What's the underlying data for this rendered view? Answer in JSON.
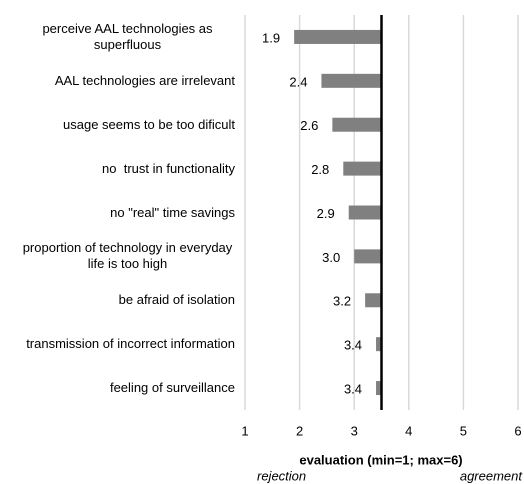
{
  "chart_data": {
    "type": "bar",
    "orientation": "horizontal",
    "categories": [
      "perceive AAL technologies as superfluous",
      "AAL technologies are irrelevant",
      "usage seems to be too dificult",
      "no  trust in functionality",
      "no \"real\" time savings",
      "proportion of technology in everyday life is too high",
      "be afraid of isolation",
      "transmission of incorrect information",
      "feeling of surveillance"
    ],
    "values": [
      1.9,
      2.4,
      2.6,
      2.8,
      2.9,
      3.0,
      3.2,
      3.4,
      3.4
    ],
    "value_labels": [
      "1.9",
      "2.4",
      "2.6",
      "2.8",
      "2.9",
      "3.0",
      "3.2",
      "3.4",
      "3.4"
    ],
    "color": "#808080",
    "reference_line": 3.5,
    "xlim": [
      1,
      6
    ],
    "xticks": [
      1,
      2,
      3,
      4,
      5,
      6
    ],
    "grid": true,
    "xlabel": "evaluation (min=1; max=6)",
    "xlabel_left": "rejection",
    "xlabel_right": "agreement"
  }
}
